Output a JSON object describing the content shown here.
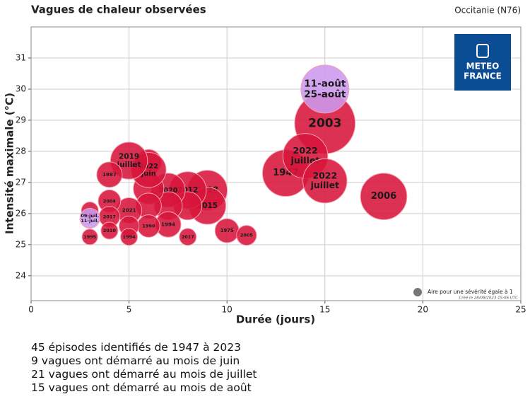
{
  "chart_data": {
    "type": "bubble",
    "title": "Vagues de chaleur observées",
    "subtitle": "Occitanie (N76)",
    "xlabel": "Durée (jours)",
    "ylabel": "Intensité maximale (°C)",
    "xlim": [
      0,
      25
    ],
    "ylim": [
      23.2,
      32
    ],
    "xticks": [
      0,
      5,
      10,
      15,
      20,
      25
    ],
    "yticks": [
      24,
      25,
      26,
      27,
      28,
      29,
      30,
      31
    ],
    "grid": true,
    "series": [
      {
        "color": "#d7153a",
        "x": [
          15,
          13,
          14,
          15,
          18,
          9,
          9,
          8,
          8,
          7,
          7,
          7,
          6,
          6,
          6,
          6,
          6,
          5,
          5,
          5,
          5,
          4,
          4,
          4,
          4,
          3,
          3,
          10,
          11,
          8
        ],
        "values": [
          28.9,
          27.3,
          27.85,
          27.05,
          26.55,
          26.75,
          26.25,
          26.75,
          26.25,
          26.75,
          26.25,
          25.65,
          27.65,
          26.8,
          26.25,
          27.4,
          25.6,
          27.7,
          26.1,
          25.6,
          25.25,
          27.25,
          26.4,
          25.9,
          25.45,
          26.1,
          25.25,
          25.45,
          25.3,
          25.25
        ],
        "sizes": [
          51,
          30,
          28,
          27,
          30,
          22,
          19,
          19,
          11,
          16,
          11,
          9,
          9,
          13,
          9,
          17,
          7,
          19,
          9,
          5.5,
          4,
          9,
          7,
          6,
          4,
          4,
          3.4,
          8,
          5.5,
          4
        ],
        "labels": [
          [
            "2003"
          ],
          [
            "1947"
          ],
          [
            "2022",
            "juillet"
          ],
          [
            "2022",
            "juillet"
          ],
          [
            "2006"
          ],
          [
            "2018"
          ],
          [
            "2015"
          ],
          [
            "2012"
          ],
          null,
          [
            "2020"
          ],
          null,
          [
            "1994"
          ],
          null,
          null,
          null,
          [
            "2022",
            "juin"
          ],
          [
            "1990"
          ],
          [
            "2019",
            "juillet"
          ],
          [
            "2021"
          ],
          null,
          [
            "1994"
          ],
          [
            "1987"
          ],
          [
            "2004"
          ],
          [
            "2017"
          ],
          [
            "2010"
          ],
          null,
          [
            "1995"
          ],
          [
            "1975"
          ],
          [
            "2005"
          ],
          [
            "2017"
          ]
        ]
      },
      {
        "color": "#cc99ee",
        "x": [
          15,
          3
        ],
        "values": [
          30.0,
          25.85
        ],
        "sizes": [
          32,
          5.5
        ],
        "labels": [
          [
            "11-août",
            "25-août"
          ],
          [
            "09-juil.",
            "11-juil."
          ]
        ]
      }
    ],
    "size_legend": {
      "label": "Aire pour une sévérité égale à 1",
      "size": 1
    },
    "credit": "Créé le 28/08/2023 15:06 UTC",
    "logo": [
      "METEO",
      "FRANCE"
    ],
    "notes": [
      "45 épisodes identifiés de 1947 à 2023",
      "9 vagues ont démarré au mois de juin",
      "21 vagues ont démarré au mois de juillet",
      "15 vagues ont démarré au mois de août"
    ]
  }
}
